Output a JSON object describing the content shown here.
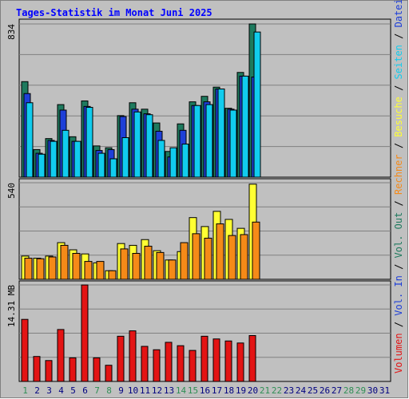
{
  "chart_data": [
    {
      "type": "bar",
      "title": "Tages-Statistik im Monat Juni 2025",
      "ymax_label": "834",
      "ylim": [
        0,
        834
      ],
      "categories": [
        "1",
        "2",
        "3",
        "4",
        "5",
        "6",
        "7",
        "8",
        "9",
        "10",
        "11",
        "12",
        "13",
        "14",
        "15",
        "16",
        "17",
        "18",
        "19",
        "20",
        "21",
        "22",
        "23",
        "24",
        "25",
        "26",
        "27",
        "28",
        "29",
        "30",
        "31"
      ],
      "series": [
        {
          "name": "Anfragen",
          "color": "#1e7a5e",
          "values": [
            520,
            150,
            210,
            395,
            220,
            415,
            170,
            160,
            335,
            405,
            370,
            295,
            140,
            290,
            410,
            440,
            490,
            375,
            570,
            834,
            0,
            0,
            0,
            0,
            0,
            0,
            0,
            0,
            0,
            0,
            0
          ]
        },
        {
          "name": "Dateien",
          "color": "#1e3fd8",
          "values": [
            455,
            130,
            200,
            365,
            195,
            385,
            145,
            150,
            330,
            370,
            345,
            250,
            110,
            255,
            390,
            410,
            480,
            370,
            550,
            545,
            0,
            0,
            0,
            0,
            0,
            0,
            0,
            0,
            0,
            0,
            0
          ]
        },
        {
          "name": "Seiten",
          "color": "#11ccee",
          "values": [
            405,
            125,
            195,
            255,
            195,
            380,
            130,
            100,
            215,
            355,
            340,
            200,
            160,
            180,
            390,
            395,
            480,
            365,
            550,
            790,
            0,
            0,
            0,
            0,
            0,
            0,
            0,
            0,
            0,
            0,
            0
          ]
        }
      ]
    },
    {
      "type": "bar",
      "ymax_label": "540",
      "ylim": [
        0,
        540
      ],
      "categories": [
        "1",
        "2",
        "3",
        "4",
        "5",
        "6",
        "7",
        "8",
        "9",
        "10",
        "11",
        "12",
        "13",
        "14",
        "15",
        "16",
        "17",
        "18",
        "19",
        "20",
        "21",
        "22",
        "23",
        "24",
        "25",
        "26",
        "27",
        "28",
        "29",
        "30",
        "31"
      ],
      "series": [
        {
          "name": "Besuche",
          "color": "#ffff33",
          "values": [
            130,
            118,
            130,
            205,
            165,
            142,
            92,
            48,
            200,
            190,
            222,
            160,
            108,
            155,
            345,
            295,
            380,
            335,
            285,
            532,
            0,
            0,
            0,
            0,
            0,
            0,
            0,
            0,
            0,
            0,
            0
          ]
        },
        {
          "name": "Rechner",
          "color": "#f58a18",
          "values": [
            118,
            115,
            125,
            190,
            145,
            100,
            100,
            48,
            170,
            145,
            185,
            150,
            108,
            205,
            255,
            230,
            310,
            245,
            250,
            320,
            0,
            0,
            0,
            0,
            0,
            0,
            0,
            0,
            0,
            0,
            0
          ]
        }
      ]
    },
    {
      "type": "bar",
      "ymax_label": "14.31 MB",
      "ylim": [
        0,
        14.31
      ],
      "categories": [
        "1",
        "2",
        "3",
        "4",
        "5",
        "6",
        "7",
        "8",
        "9",
        "10",
        "11",
        "12",
        "13",
        "14",
        "15",
        "16",
        "17",
        "18",
        "19",
        "20",
        "21",
        "22",
        "23",
        "24",
        "25",
        "26",
        "27",
        "28",
        "29",
        "30",
        "31"
      ],
      "series": [
        {
          "name": "Volumen",
          "color": "#e31414",
          "values": [
            9.2,
            3.7,
            3.1,
            7.7,
            3.5,
            14.3,
            3.5,
            2.4,
            6.7,
            7.5,
            5.2,
            4.7,
            5.8,
            5.3,
            4.6,
            6.7,
            6.3,
            6.0,
            5.7,
            6.8,
            0,
            0,
            0,
            0,
            0,
            0,
            0,
            0,
            0,
            0,
            0
          ]
        }
      ]
    }
  ],
  "x_label_colors": {
    "weekday": "#000080",
    "weekend": "#2f8f55"
  },
  "weekend_days": [
    1,
    7,
    8,
    14,
    15,
    21,
    22,
    28,
    29
  ],
  "side_legend": [
    {
      "text": "Volumen",
      "color": "#e31414"
    },
    {
      "text": "Vol. In",
      "color": "#1e3fd8"
    },
    {
      "text": "Vol. Out",
      "color": "#1e7a5e"
    },
    {
      "text": "Rechner",
      "color": "#f58a18"
    },
    {
      "text": "Besuche",
      "color": "#ffff33"
    },
    {
      "text": "Seiten",
      "color": "#11ccee"
    },
    {
      "text": "Dateien",
      "color": "#1e3fd8"
    },
    {
      "text": "Anfragen",
      "color": "#1e7a5e"
    }
  ],
  "legend_separator": " / "
}
